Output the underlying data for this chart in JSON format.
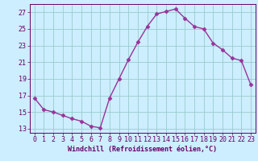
{
  "x": [
    0,
    1,
    2,
    3,
    4,
    5,
    6,
    7,
    8,
    9,
    10,
    11,
    12,
    13,
    14,
    15,
    16,
    17,
    18,
    19,
    20,
    21,
    22,
    23
  ],
  "y": [
    16.7,
    15.3,
    15.0,
    14.6,
    14.2,
    13.9,
    13.3,
    13.1,
    16.7,
    19.0,
    21.3,
    23.4,
    25.3,
    26.8,
    27.1,
    27.4,
    26.3,
    25.3,
    25.0,
    23.3,
    22.5,
    21.5,
    21.2,
    18.3
  ],
  "line_color": "#993399",
  "marker": "D",
  "markersize": 2.5,
  "linewidth": 1.0,
  "bg_color": "#cceeff",
  "grid_color": "#99cccc",
  "xlabel": "Windchill (Refroidissement éolien,°C)",
  "ylabel": "",
  "xlim": [
    -0.5,
    23.5
  ],
  "ylim": [
    12.5,
    28.0
  ],
  "yticks": [
    13,
    15,
    17,
    19,
    21,
    23,
    25,
    27
  ],
  "xticks": [
    0,
    1,
    2,
    3,
    4,
    5,
    6,
    7,
    8,
    9,
    10,
    11,
    12,
    13,
    14,
    15,
    16,
    17,
    18,
    19,
    20,
    21,
    22,
    23
  ],
  "tick_color": "#660066",
  "label_fontsize": 6.0,
  "tick_fontsize": 6.0,
  "axes_color": "#660066"
}
